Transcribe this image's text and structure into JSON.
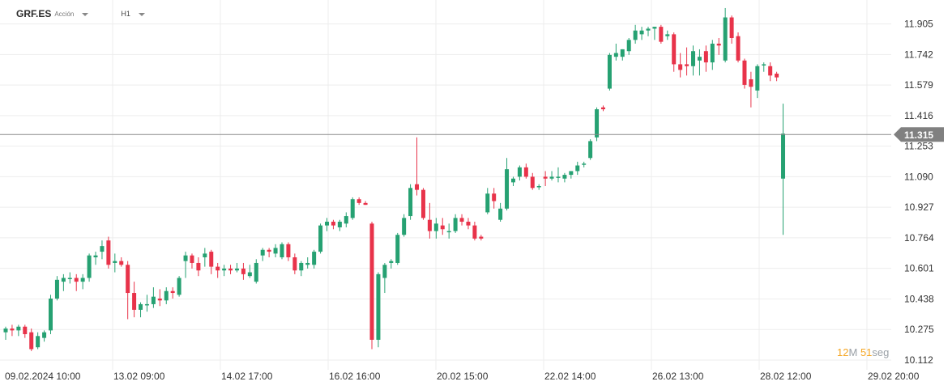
{
  "header": {
    "symbol": "GRF.ES",
    "instrument_type": "Acción",
    "timeframe": "H1"
  },
  "timer": {
    "minutes": "12",
    "minutes_unit": "M",
    "seconds": "51",
    "seconds_unit": "seg"
  },
  "colors": {
    "up": "#26a172",
    "down": "#e8334a",
    "grid": "#ededed",
    "price_line": "#8a8a8a",
    "price_badge": "#808080"
  },
  "chart_data": {
    "type": "candlestick",
    "ylim": [
      10.06,
      12.02
    ],
    "y_ticks": [
      "11.905",
      "11.742",
      "11.579",
      "11.416",
      "11.253",
      "11.090",
      "10.927",
      "10.764",
      "10.601",
      "10.438",
      "10.275",
      "10.112"
    ],
    "x_ticks": [
      "09.02.2024  10:00",
      "13.02  09:00",
      "14.02  17:00",
      "16.02  16:00",
      "20.02  15:00",
      "22.02  14:00",
      "26.02  13:00",
      "28.02  12:00",
      "29.02  20:00"
    ],
    "current_price": "11.315",
    "candles": [
      [
        10.26,
        10.29,
        10.22,
        10.28
      ],
      [
        10.28,
        10.3,
        10.24,
        10.27
      ],
      [
        10.27,
        10.3,
        10.24,
        10.29
      ],
      [
        10.29,
        10.3,
        10.23,
        10.25
      ],
      [
        10.26,
        10.28,
        10.16,
        10.17
      ],
      [
        10.18,
        10.26,
        10.17,
        10.24
      ],
      [
        10.23,
        10.27,
        10.21,
        10.26
      ],
      [
        10.27,
        10.46,
        10.25,
        10.44
      ],
      [
        10.44,
        10.56,
        10.43,
        10.54
      ],
      [
        10.53,
        10.57,
        10.48,
        10.55
      ],
      [
        10.55,
        10.58,
        10.52,
        10.55
      ],
      [
        10.55,
        10.57,
        10.48,
        10.53
      ],
      [
        10.53,
        10.57,
        10.49,
        10.55
      ],
      [
        10.55,
        10.68,
        10.53,
        10.67
      ],
      [
        10.66,
        10.69,
        10.62,
        10.67
      ],
      [
        10.69,
        10.75,
        10.65,
        10.72
      ],
      [
        10.75,
        10.77,
        10.6,
        10.62
      ],
      [
        10.63,
        10.68,
        10.58,
        10.64
      ],
      [
        10.64,
        10.66,
        10.61,
        10.62
      ],
      [
        10.62,
        10.64,
        10.33,
        10.47
      ],
      [
        10.47,
        10.53,
        10.34,
        10.38
      ],
      [
        10.38,
        10.42,
        10.34,
        10.41
      ],
      [
        10.41,
        10.46,
        10.37,
        10.41
      ],
      [
        10.41,
        10.5,
        10.39,
        10.45
      ],
      [
        10.44,
        10.49,
        10.4,
        10.43
      ],
      [
        10.43,
        10.5,
        10.41,
        10.48
      ],
      [
        10.48,
        10.5,
        10.44,
        10.47
      ],
      [
        10.46,
        10.56,
        10.45,
        10.55
      ],
      [
        10.64,
        10.69,
        10.55,
        10.67
      ],
      [
        10.67,
        10.68,
        10.6,
        10.63
      ],
      [
        10.63,
        10.66,
        10.56,
        10.59
      ],
      [
        10.66,
        10.71,
        10.61,
        10.68
      ],
      [
        10.69,
        10.7,
        10.57,
        10.61
      ],
      [
        10.61,
        10.63,
        10.55,
        10.59
      ],
      [
        10.59,
        10.62,
        10.56,
        10.6
      ],
      [
        10.6,
        10.62,
        10.57,
        10.59
      ],
      [
        10.59,
        10.63,
        10.58,
        10.6
      ],
      [
        10.6,
        10.63,
        10.54,
        10.57
      ],
      [
        10.56,
        10.62,
        10.55,
        10.58
      ],
      [
        10.53,
        10.65,
        10.52,
        10.63
      ],
      [
        10.67,
        10.71,
        10.64,
        10.7
      ],
      [
        10.7,
        10.71,
        10.66,
        10.69
      ],
      [
        10.68,
        10.73,
        10.66,
        10.71
      ],
      [
        10.66,
        10.74,
        10.65,
        10.73
      ],
      [
        10.73,
        10.74,
        10.64,
        10.66
      ],
      [
        10.66,
        10.68,
        10.57,
        10.59
      ],
      [
        10.59,
        10.64,
        10.56,
        10.63
      ],
      [
        10.62,
        10.66,
        10.6,
        10.63
      ],
      [
        10.62,
        10.7,
        10.6,
        10.69
      ],
      [
        10.69,
        10.84,
        10.68,
        10.83
      ],
      [
        10.83,
        10.87,
        10.8,
        10.85
      ],
      [
        10.85,
        10.86,
        10.81,
        10.83
      ],
      [
        10.82,
        10.86,
        10.8,
        10.85
      ],
      [
        10.84,
        10.9,
        10.82,
        10.88
      ],
      [
        10.87,
        10.98,
        10.86,
        10.97
      ],
      [
        10.97,
        10.98,
        10.94,
        10.95
      ],
      [
        10.95,
        10.96,
        10.94,
        10.94
      ],
      [
        10.84,
        10.85,
        10.17,
        10.22
      ],
      [
        10.22,
        10.58,
        10.18,
        10.57
      ],
      [
        10.55,
        10.63,
        10.47,
        10.62
      ],
      [
        10.63,
        10.65,
        10.6,
        10.64
      ],
      [
        10.63,
        10.79,
        10.62,
        10.78
      ],
      [
        10.78,
        10.89,
        10.77,
        10.87
      ],
      [
        10.88,
        11.05,
        10.86,
        11.03
      ],
      [
        11.05,
        11.3,
        10.99,
        11.02
      ],
      [
        11.02,
        11.03,
        10.86,
        10.87
      ],
      [
        10.86,
        10.95,
        10.76,
        10.8
      ],
      [
        10.8,
        10.87,
        10.76,
        10.84
      ],
      [
        10.83,
        10.87,
        10.78,
        10.81
      ],
      [
        10.8,
        10.84,
        10.76,
        10.8
      ],
      [
        10.8,
        10.89,
        10.79,
        10.87
      ],
      [
        10.87,
        10.89,
        10.83,
        10.85
      ],
      [
        10.85,
        10.87,
        10.81,
        10.83
      ],
      [
        10.83,
        10.85,
        10.75,
        10.76
      ],
      [
        10.77,
        10.78,
        10.75,
        10.76
      ],
      [
        10.9,
        11.03,
        10.89,
        11.0
      ],
      [
        11.0,
        11.03,
        10.92,
        10.96
      ],
      [
        10.86,
        10.95,
        10.85,
        10.92
      ],
      [
        10.92,
        11.19,
        10.91,
        11.13
      ],
      [
        11.06,
        11.09,
        11.04,
        11.08
      ],
      [
        11.09,
        11.15,
        11.07,
        11.14
      ],
      [
        11.14,
        11.16,
        11.08,
        11.09
      ],
      [
        11.09,
        11.11,
        11.02,
        11.03
      ],
      [
        11.04,
        11.05,
        11.02,
        11.04
      ],
      [
        11.09,
        11.12,
        11.04,
        11.08
      ],
      [
        11.08,
        11.12,
        11.07,
        11.09
      ],
      [
        11.09,
        11.14,
        11.06,
        11.09
      ],
      [
        11.08,
        11.11,
        11.06,
        11.1
      ],
      [
        11.1,
        11.12,
        11.08,
        11.12
      ],
      [
        11.12,
        11.17,
        11.1,
        11.15
      ],
      [
        11.16,
        11.17,
        11.14,
        11.16
      ],
      [
        11.19,
        11.29,
        11.18,
        11.28
      ],
      [
        11.3,
        11.46,
        11.28,
        11.45
      ],
      [
        11.46,
        11.47,
        11.44,
        11.45
      ],
      [
        11.56,
        11.75,
        11.55,
        11.74
      ],
      [
        11.73,
        11.8,
        11.71,
        11.75
      ],
      [
        11.73,
        11.77,
        11.71,
        11.77
      ],
      [
        11.76,
        11.83,
        11.74,
        11.82
      ],
      [
        11.82,
        11.9,
        11.8,
        11.87
      ],
      [
        11.85,
        11.89,
        11.82,
        11.87
      ],
      [
        11.87,
        11.89,
        11.84,
        11.88
      ],
      [
        11.88,
        11.89,
        11.82,
        11.89
      ],
      [
        11.89,
        11.9,
        11.8,
        11.81
      ],
      [
        11.84,
        11.87,
        11.82,
        11.85
      ],
      [
        11.85,
        11.86,
        11.65,
        11.69
      ],
      [
        11.69,
        11.75,
        11.62,
        11.66
      ],
      [
        11.69,
        11.78,
        11.63,
        11.68
      ],
      [
        11.68,
        11.79,
        11.63,
        11.76
      ],
      [
        11.71,
        11.77,
        11.63,
        11.73
      ],
      [
        11.76,
        11.79,
        11.65,
        11.7
      ],
      [
        11.7,
        11.82,
        11.66,
        11.8
      ],
      [
        11.8,
        11.83,
        11.74,
        11.79
      ],
      [
        11.71,
        11.99,
        11.7,
        11.94
      ],
      [
        11.94,
        11.95,
        11.8,
        11.83
      ],
      [
        11.84,
        11.86,
        11.7,
        11.71
      ],
      [
        11.71,
        11.72,
        11.56,
        11.58
      ],
      [
        11.61,
        11.65,
        11.46,
        11.57
      ],
      [
        11.55,
        11.69,
        11.51,
        11.68
      ],
      [
        11.69,
        11.7,
        11.65,
        11.69
      ],
      [
        11.68,
        11.7,
        11.6,
        11.63
      ],
      [
        11.64,
        11.65,
        11.6,
        11.62
      ],
      [
        11.08,
        11.48,
        10.78,
        11.32
      ]
    ]
  }
}
